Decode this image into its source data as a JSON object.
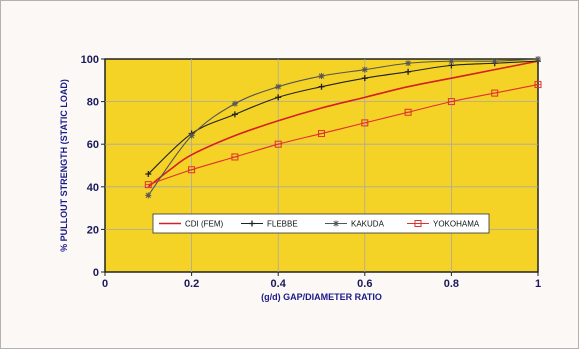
{
  "chart_data": {
    "type": "line",
    "title": "",
    "xlabel": "(g/d) GAP/DIAMETER RATIO",
    "ylabel": "% PULLOUT STRENGTH (STATIC LOAD)",
    "xlim": [
      0,
      1
    ],
    "ylim": [
      0,
      100
    ],
    "x_ticks": [
      "0",
      "0.2",
      "0.4",
      "0.6",
      "0.8",
      "1"
    ],
    "y_ticks": [
      "0",
      "20",
      "40",
      "60",
      "80",
      "100"
    ],
    "grid": true,
    "legend_position": "bottom-center",
    "series": [
      {
        "name": "CDI (FEM)",
        "color": "#d42020",
        "marker": "none",
        "x": [
          0.1,
          0.15,
          0.2,
          0.3,
          0.4,
          0.5,
          0.6,
          0.7,
          0.8,
          0.9,
          1.0
        ],
        "y": [
          40,
          48,
          55,
          64,
          71,
          77,
          82,
          87,
          91,
          95,
          99
        ]
      },
      {
        "name": "FLEBBE",
        "color": "#222222",
        "marker": "plus",
        "x": [
          0.1,
          0.2,
          0.3,
          0.4,
          0.5,
          0.6,
          0.7,
          0.8,
          0.9,
          1.0
        ],
        "y": [
          46,
          65,
          74,
          82,
          87,
          91,
          94,
          97,
          98,
          99
        ]
      },
      {
        "name": "KAKUDA",
        "color": "#555555",
        "marker": "star",
        "x": [
          0.1,
          0.2,
          0.3,
          0.4,
          0.5,
          0.6,
          0.7,
          0.8,
          0.9,
          1.0
        ],
        "y": [
          36,
          64,
          79,
          87,
          92,
          95,
          98,
          99,
          99,
          100
        ]
      },
      {
        "name": "YOKOHAMA",
        "color": "#e03030",
        "marker": "square",
        "x": [
          0.1,
          0.2,
          0.3,
          0.4,
          0.5,
          0.6,
          0.7,
          0.8,
          0.9,
          1.0
        ],
        "y": [
          41,
          48,
          54,
          60,
          65,
          70,
          75,
          80,
          84,
          88
        ]
      }
    ],
    "colors": {
      "plot_background": "#f5d226",
      "grid": "#a8a8a8",
      "axis": "#222222",
      "tick_text": "#1a1a5a",
      "axis_title": "#1a1a8a"
    }
  }
}
